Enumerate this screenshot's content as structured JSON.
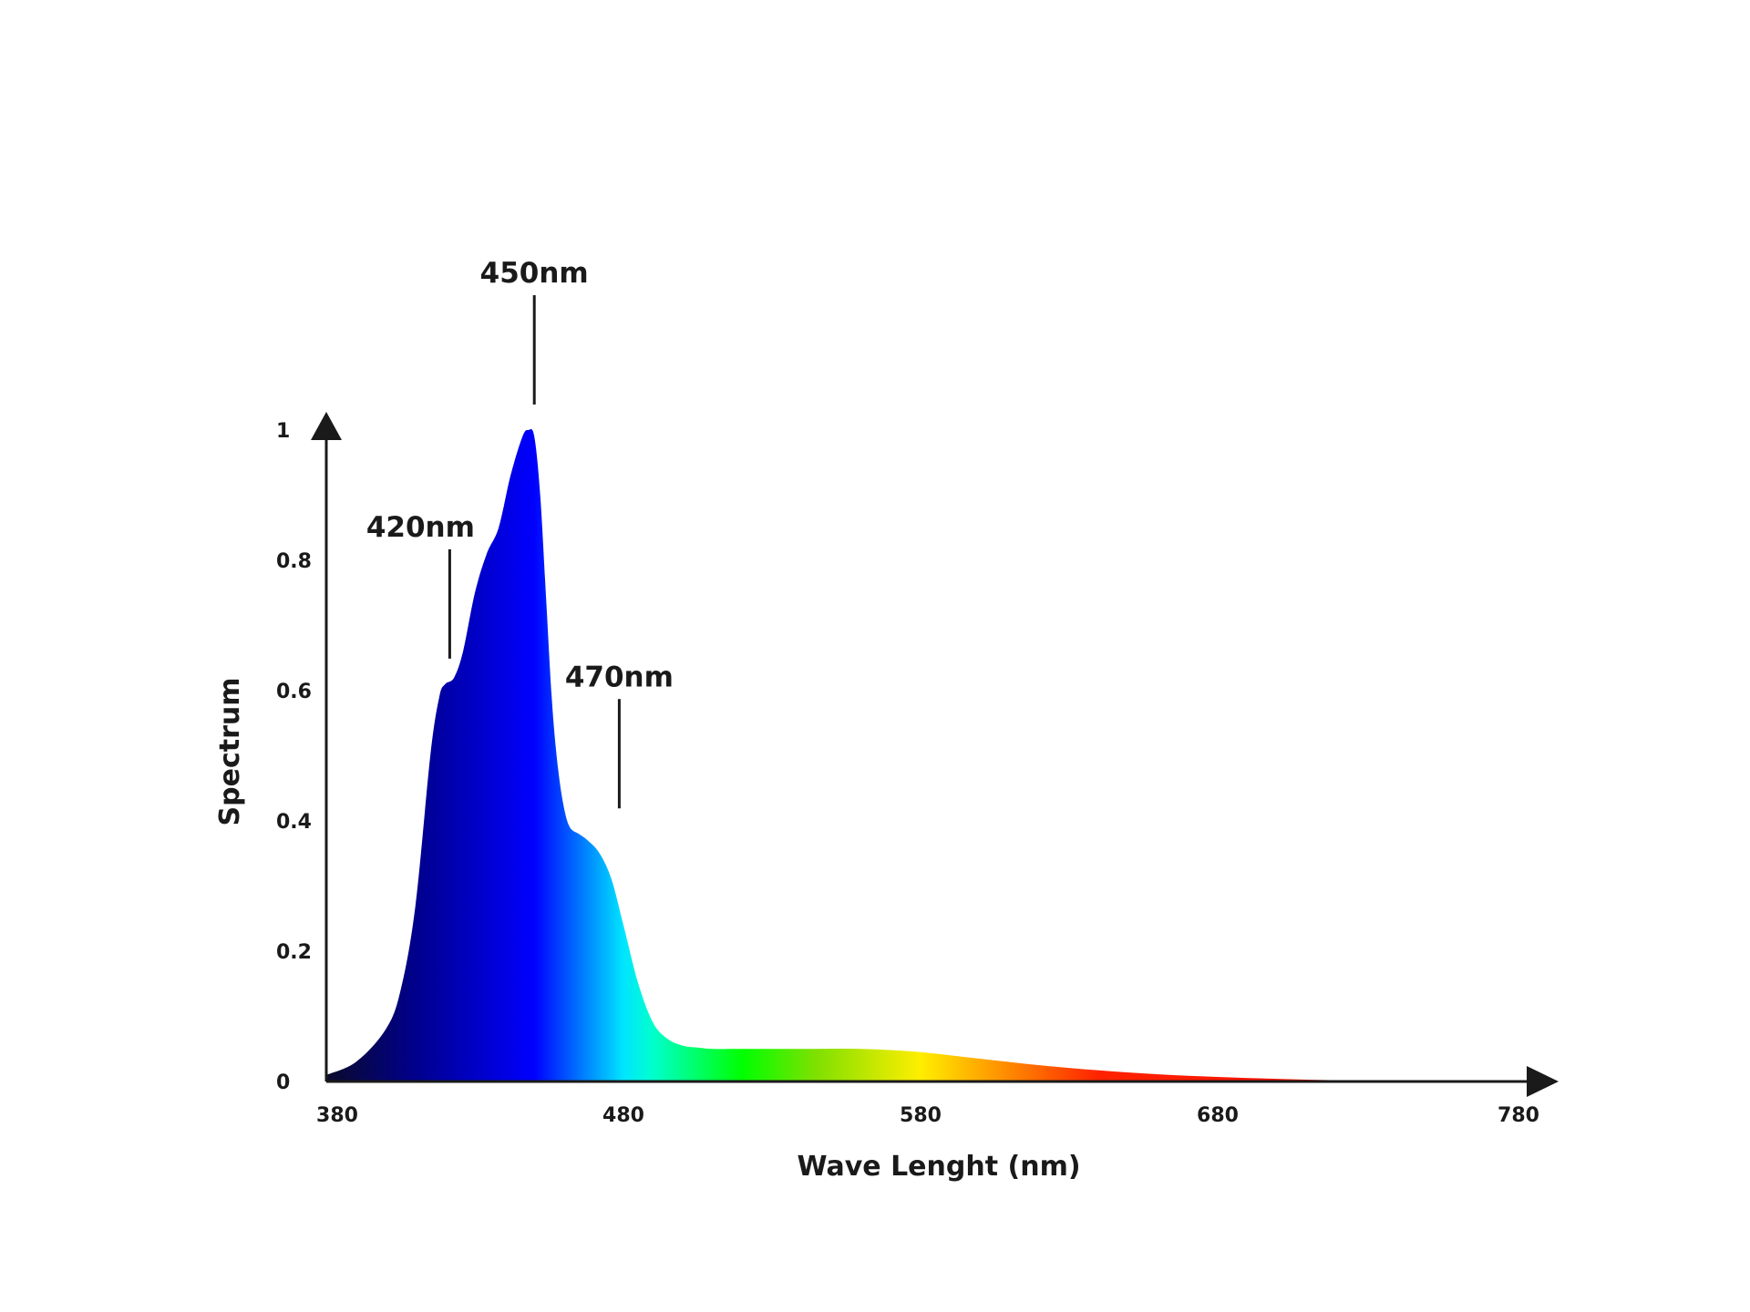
{
  "chart_data": {
    "type": "area",
    "xlabel": "Wave Lenght (nm)",
    "ylabel": "Spectrum",
    "xlim": [
      380,
      780
    ],
    "ylim": [
      0,
      1
    ],
    "x_ticks": [
      "380",
      "480",
      "580",
      "680",
      "780"
    ],
    "y_ticks": [
      "0",
      "0.2",
      "0.4",
      "0.6",
      "0.8",
      "1"
    ],
    "series": [
      {
        "x": [
          380,
          390,
          400,
          405,
          410,
          415,
          418,
          420,
          423,
          426,
          430,
          434,
          438,
          442,
          446,
          448,
          450,
          452,
          454,
          456,
          458,
          460,
          462,
          465,
          468,
          472,
          476,
          480,
          485,
          490,
          495,
          500,
          505,
          510,
          520,
          540,
          560,
          580,
          600,
          620,
          640,
          660,
          680,
          700,
          720,
          740,
          760,
          780
        ],
        "values": [
          0.01,
          0.03,
          0.08,
          0.14,
          0.27,
          0.5,
          0.59,
          0.61,
          0.62,
          0.66,
          0.75,
          0.81,
          0.85,
          0.93,
          0.99,
          1.0,
          0.99,
          0.9,
          0.74,
          0.58,
          0.48,
          0.42,
          0.39,
          0.38,
          0.37,
          0.35,
          0.31,
          0.24,
          0.15,
          0.09,
          0.065,
          0.055,
          0.052,
          0.05,
          0.05,
          0.05,
          0.05,
          0.045,
          0.035,
          0.025,
          0.017,
          0.011,
          0.007,
          0.004,
          0.002,
          0.001,
          0.0,
          0.0
        ]
      }
    ],
    "peak_annotations": [
      {
        "label": "420nm",
        "x": 420,
        "y": 0.61
      },
      {
        "label": "450nm",
        "x": 450,
        "y": 1.0
      },
      {
        "label": "470nm",
        "x": 470,
        "y": 0.38
      }
    ],
    "gradient_colors": [
      {
        "wl": 380,
        "color": "#0a0a2a"
      },
      {
        "wl": 410,
        "color": "#00008c"
      },
      {
        "wl": 450,
        "color": "#0000ff"
      },
      {
        "wl": 480,
        "color": "#00e5ff"
      },
      {
        "wl": 490,
        "color": "#00ffcc"
      },
      {
        "wl": 520,
        "color": "#00ff00"
      },
      {
        "wl": 545,
        "color": "#80e000"
      },
      {
        "wl": 580,
        "color": "#ffee00"
      },
      {
        "wl": 605,
        "color": "#ff9900"
      },
      {
        "wl": 640,
        "color": "#ff2200"
      },
      {
        "wl": 780,
        "color": "#ff0000"
      }
    ],
    "grid": false,
    "legend": "none"
  }
}
